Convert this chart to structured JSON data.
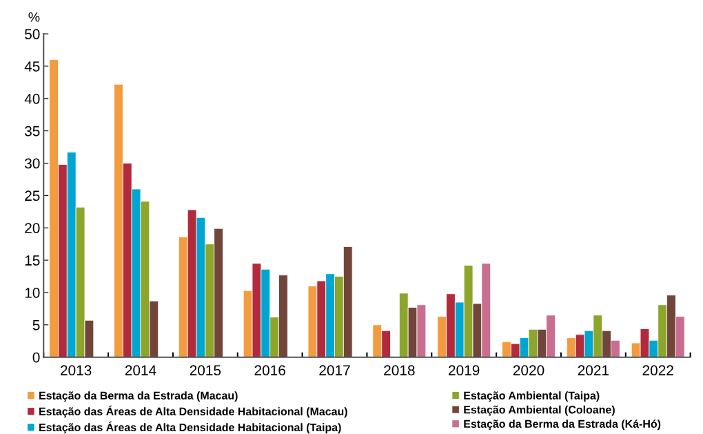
{
  "chart_data": {
    "type": "bar",
    "ylabel": "%",
    "categories": [
      "2013",
      "2014",
      "2015",
      "2016",
      "2017",
      "2018",
      "2019",
      "2020",
      "2021",
      "2022"
    ],
    "series": [
      {
        "name": "Estação da Berma da Estrada (Macau)",
        "color": "#f39c3f",
        "values": [
          46.0,
          42.2,
          18.6,
          10.3,
          11.0,
          5.0,
          6.3,
          2.4,
          3.0,
          2.2
        ]
      },
      {
        "name": "Estação das Áreas de Alta Densidade Habitacional (Macau)",
        "color": "#b22a3c",
        "values": [
          29.8,
          30.0,
          22.8,
          14.5,
          11.8,
          4.1,
          9.8,
          2.1,
          3.5,
          4.4
        ]
      },
      {
        "name": "Estação das Áreas de Alta Densidade Habitacional (Taipa)",
        "color": "#00a6d2",
        "values": [
          31.7,
          26.0,
          21.6,
          13.6,
          12.9,
          null,
          8.5,
          3.0,
          4.1,
          2.6
        ]
      },
      {
        "name": "Estação Ambiental (Taipa)",
        "color": "#8ca52b",
        "values": [
          23.2,
          24.1,
          17.5,
          6.2,
          12.5,
          9.9,
          14.2,
          4.3,
          6.5,
          8.1
        ]
      },
      {
        "name": "Estação Ambiental (Coloane)",
        "color": "#72453a",
        "values": [
          5.7,
          8.7,
          19.9,
          12.7,
          17.1,
          7.7,
          8.3,
          4.3,
          4.1,
          9.6
        ]
      },
      {
        "name": "Estação da Berma da Estrada (Ká-Hó)",
        "color": "#c96e8f",
        "values": [
          null,
          null,
          null,
          null,
          null,
          8.1,
          14.5,
          6.5,
          2.6,
          6.3
        ]
      }
    ],
    "ylim": [
      0,
      50
    ],
    "yticks": [
      0,
      5,
      10,
      15,
      20,
      25,
      30,
      35,
      40,
      45,
      50
    ],
    "grid": false,
    "legend": "bottom"
  }
}
